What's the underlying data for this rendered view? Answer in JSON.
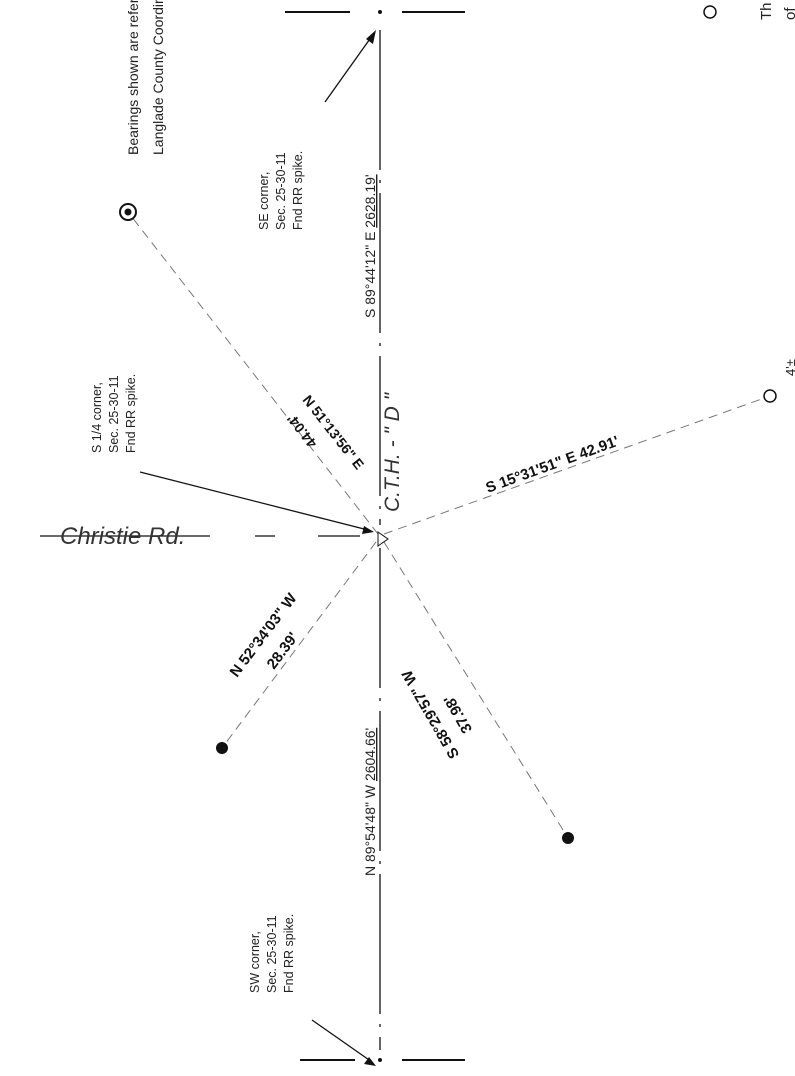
{
  "notes": {
    "bearing_line1": "Bearings shown are reference to the",
    "bearing_line2": "Langlade County Coordinate System",
    "right_edge_line1": "Th",
    "right_edge_line2": "of"
  },
  "corners": {
    "se": {
      "line1": "SE corner,",
      "line2": "Sec. 25-30-11",
      "line3": "Fnd RR spike."
    },
    "s_quarter": {
      "line1": "S 1/4 corner,",
      "line2": "Sec. 25-30-11",
      "line3": "Fnd RR spike."
    },
    "sw": {
      "line1": "SW corner,",
      "line2": "Sec. 25-30-11",
      "line3": "Fnd RR spike."
    }
  },
  "roads": {
    "christie": "Christie Rd.",
    "cth": "C.T.H. - \" D \""
  },
  "section_lines": {
    "east": {
      "prefix": "S 89°44'12\" E ",
      "distance": "2628.19'"
    },
    "west": {
      "prefix": "N 89°54'48\" W ",
      "distance": "2604.66'"
    }
  },
  "ties": {
    "ne": {
      "bearing": "N 51°13'56\" E",
      "distance": "44.04'"
    },
    "se": {
      "text": "S 15°31'51\" E  42.91'"
    },
    "nw": {
      "bearing": "N 52°34'03\" W",
      "distance": "28.39'"
    },
    "sw": {
      "bearing": "S 58°29'57\" W",
      "distance": "37.98'"
    }
  },
  "misc": {
    "offset": "4'±"
  }
}
